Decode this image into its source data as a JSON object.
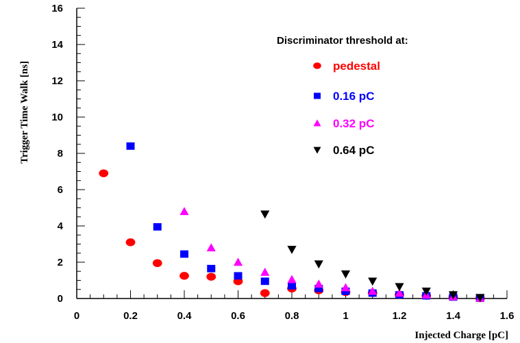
{
  "chart_data": {
    "type": "scatter",
    "xlabel": "Injected Charge [pC]",
    "ylabel": "Trigger Time Walk [ns]",
    "xlim": [
      0,
      1.6
    ],
    "ylim": [
      0,
      16
    ],
    "x_ticks": [
      "0",
      "0.2",
      "0.4",
      "0.6",
      "0.8",
      "1",
      "1.2",
      "1.4",
      "1.6"
    ],
    "y_ticks": [
      "0",
      "2",
      "4",
      "6",
      "8",
      "10",
      "12",
      "14",
      "16"
    ],
    "legend_title": "Discriminator threshold at:",
    "legend_position": "top-right",
    "grid": false,
    "series": [
      {
        "name": "pedestal",
        "marker": "circle",
        "color": "#ff0000",
        "x": [
          0.1,
          0.2,
          0.3,
          0.4,
          0.5,
          0.6,
          0.7,
          0.8,
          0.9,
          1.0,
          1.1,
          1.2,
          1.3,
          1.4,
          1.5
        ],
        "y": [
          6.9,
          3.1,
          1.95,
          1.25,
          1.2,
          0.95,
          0.3,
          0.55,
          0.45,
          0.35,
          0.3,
          0.2,
          0.15,
          0.1,
          0.02
        ]
      },
      {
        "name": "0.16 pC",
        "marker": "square",
        "color": "#0000ff",
        "x": [
          0.2,
          0.3,
          0.4,
          0.5,
          0.6,
          0.7,
          0.8,
          0.9,
          1.0,
          1.1,
          1.2,
          1.3,
          1.4,
          1.5
        ],
        "y": [
          8.4,
          3.95,
          2.45,
          1.65,
          1.25,
          0.95,
          0.7,
          0.55,
          0.4,
          0.3,
          0.2,
          0.15,
          0.08,
          0.02
        ]
      },
      {
        "name": "0.32 pC",
        "marker": "triangle-up",
        "color": "#ff00ff",
        "x": [
          0.4,
          0.5,
          0.6,
          0.7,
          0.8,
          0.9,
          1.0,
          1.1,
          1.2,
          1.3,
          1.4,
          1.5
        ],
        "y": [
          4.8,
          2.8,
          2.0,
          1.45,
          1.05,
          0.8,
          0.6,
          0.4,
          0.3,
          0.2,
          0.1,
          0.02
        ]
      },
      {
        "name": "0.64 pC",
        "marker": "triangle-down",
        "color": "#000000",
        "x": [
          0.7,
          0.8,
          0.9,
          1.0,
          1.1,
          1.2,
          1.3,
          1.4,
          1.5
        ],
        "y": [
          4.65,
          2.7,
          1.9,
          1.35,
          0.95,
          0.65,
          0.4,
          0.2,
          0.05
        ]
      }
    ]
  }
}
